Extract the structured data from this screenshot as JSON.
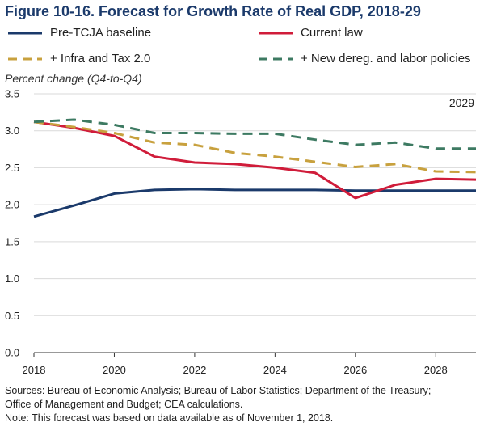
{
  "chart_data": {
    "type": "line",
    "title": "Figure 10-16. Forecast for Growth Rate of Real GDP, 2018-29",
    "ylabel": "Percent change (Q4-to-Q4)",
    "xlabel": "",
    "xlim": [
      2018,
      2029
    ],
    "ylim": [
      0,
      3.5
    ],
    "x_ticks": [
      2018,
      2020,
      2022,
      2024,
      2026,
      2028
    ],
    "y_ticks": [
      0.0,
      0.5,
      1.0,
      1.5,
      2.0,
      2.5,
      3.0,
      3.5
    ],
    "grid": true,
    "legend_position": "top",
    "annotation": "2029",
    "x": [
      2018,
      2019,
      2020,
      2021,
      2022,
      2023,
      2024,
      2025,
      2026,
      2027,
      2028,
      2029
    ],
    "series": [
      {
        "name": "Pre-TCJA baseline",
        "color": "#1b3a6b",
        "dash": "solid",
        "values": [
          1.84,
          1.99,
          2.15,
          2.2,
          2.21,
          2.2,
          2.2,
          2.2,
          2.19,
          2.19,
          2.19,
          2.19
        ]
      },
      {
        "name": "Current law",
        "color": "#d01c3a",
        "dash": "solid",
        "values": [
          3.12,
          3.04,
          2.93,
          2.65,
          2.57,
          2.55,
          2.5,
          2.43,
          2.09,
          2.27,
          2.35,
          2.34
        ]
      },
      {
        "name": "+ Infra and Tax 2.0",
        "color": "#c8a13e",
        "dash": "dashed",
        "values": [
          3.12,
          3.05,
          2.97,
          2.84,
          2.81,
          2.7,
          2.65,
          2.58,
          2.51,
          2.55,
          2.45,
          2.44
        ]
      },
      {
        "name": "+ New dereg. and labor policies",
        "color": "#3d7a62",
        "dash": "dashed",
        "values": [
          3.12,
          3.15,
          3.08,
          2.97,
          2.97,
          2.96,
          2.96,
          2.88,
          2.81,
          2.84,
          2.76,
          2.76
        ]
      }
    ]
  },
  "footer": {
    "sources_line1": "Sources: Bureau of Economic Analysis; Bureau of Labor Statistics; Department of the Treasury;",
    "sources_line2": "Office of Management and Budget; CEA calculations.",
    "note": "Note: This forecast was based on data available as of November 1, 2018."
  }
}
